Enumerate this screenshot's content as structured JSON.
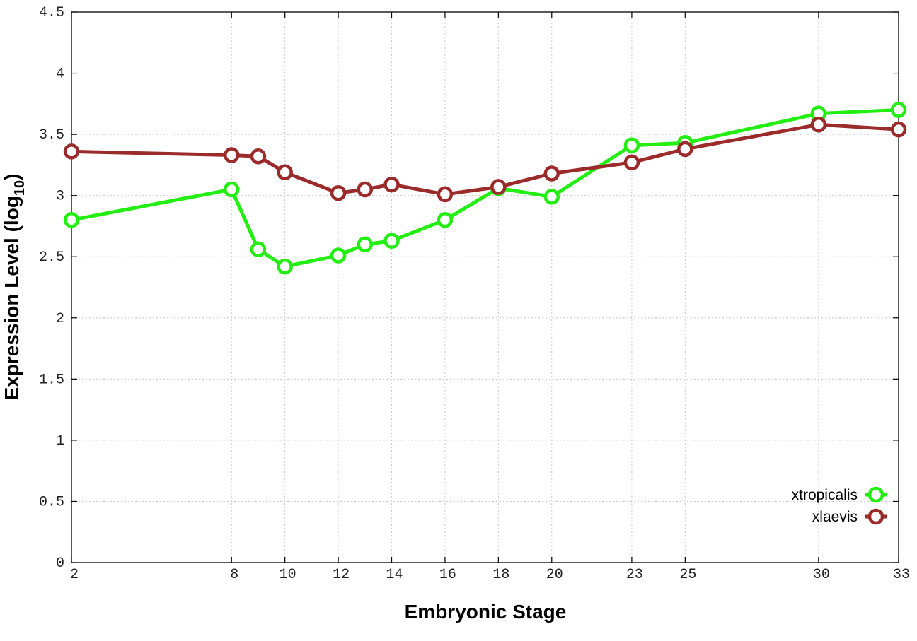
{
  "chart_data": {
    "type": "line",
    "title": "",
    "xlabel": "Embryonic Stage",
    "ylabel_main": "Expression Level (log",
    "ylabel_sub": "10",
    "ylabel_close": ")",
    "x": [
      2,
      8,
      9,
      10,
      12,
      13,
      14,
      16,
      18,
      20,
      23,
      25,
      30,
      33
    ],
    "x_tick_labels": [
      "2",
      "8",
      "10",
      "12",
      "14",
      "16",
      "18",
      "20",
      "23",
      "25",
      "30",
      "33"
    ],
    "x_tick_values": [
      2,
      8,
      10,
      12,
      14,
      16,
      18,
      20,
      23,
      25,
      30,
      33
    ],
    "y_tick_labels": [
      "0",
      "0.5",
      "1",
      "1.5",
      "2",
      "2.5",
      "3",
      "3.5",
      "4",
      "4.5"
    ],
    "y_tick_values": [
      0,
      0.5,
      1,
      1.5,
      2,
      2.5,
      3,
      3.5,
      4,
      4.5
    ],
    "xlim": [
      2,
      33
    ],
    "ylim": [
      0,
      4.5
    ],
    "grid": true,
    "legend_position": "bottom-right",
    "series": [
      {
        "name": "xtropicalis",
        "color": "#22ee11",
        "values": [
          2.8,
          3.05,
          2.56,
          2.42,
          2.51,
          2.6,
          2.63,
          2.8,
          3.06,
          2.99,
          3.41,
          3.43,
          3.67,
          3.7
        ]
      },
      {
        "name": "xlaevis",
        "color": "#9b2a2a",
        "values": [
          3.36,
          3.33,
          3.32,
          3.19,
          3.02,
          3.05,
          3.09,
          3.01,
          3.07,
          3.18,
          3.27,
          3.38,
          3.58,
          3.54
        ]
      }
    ]
  }
}
